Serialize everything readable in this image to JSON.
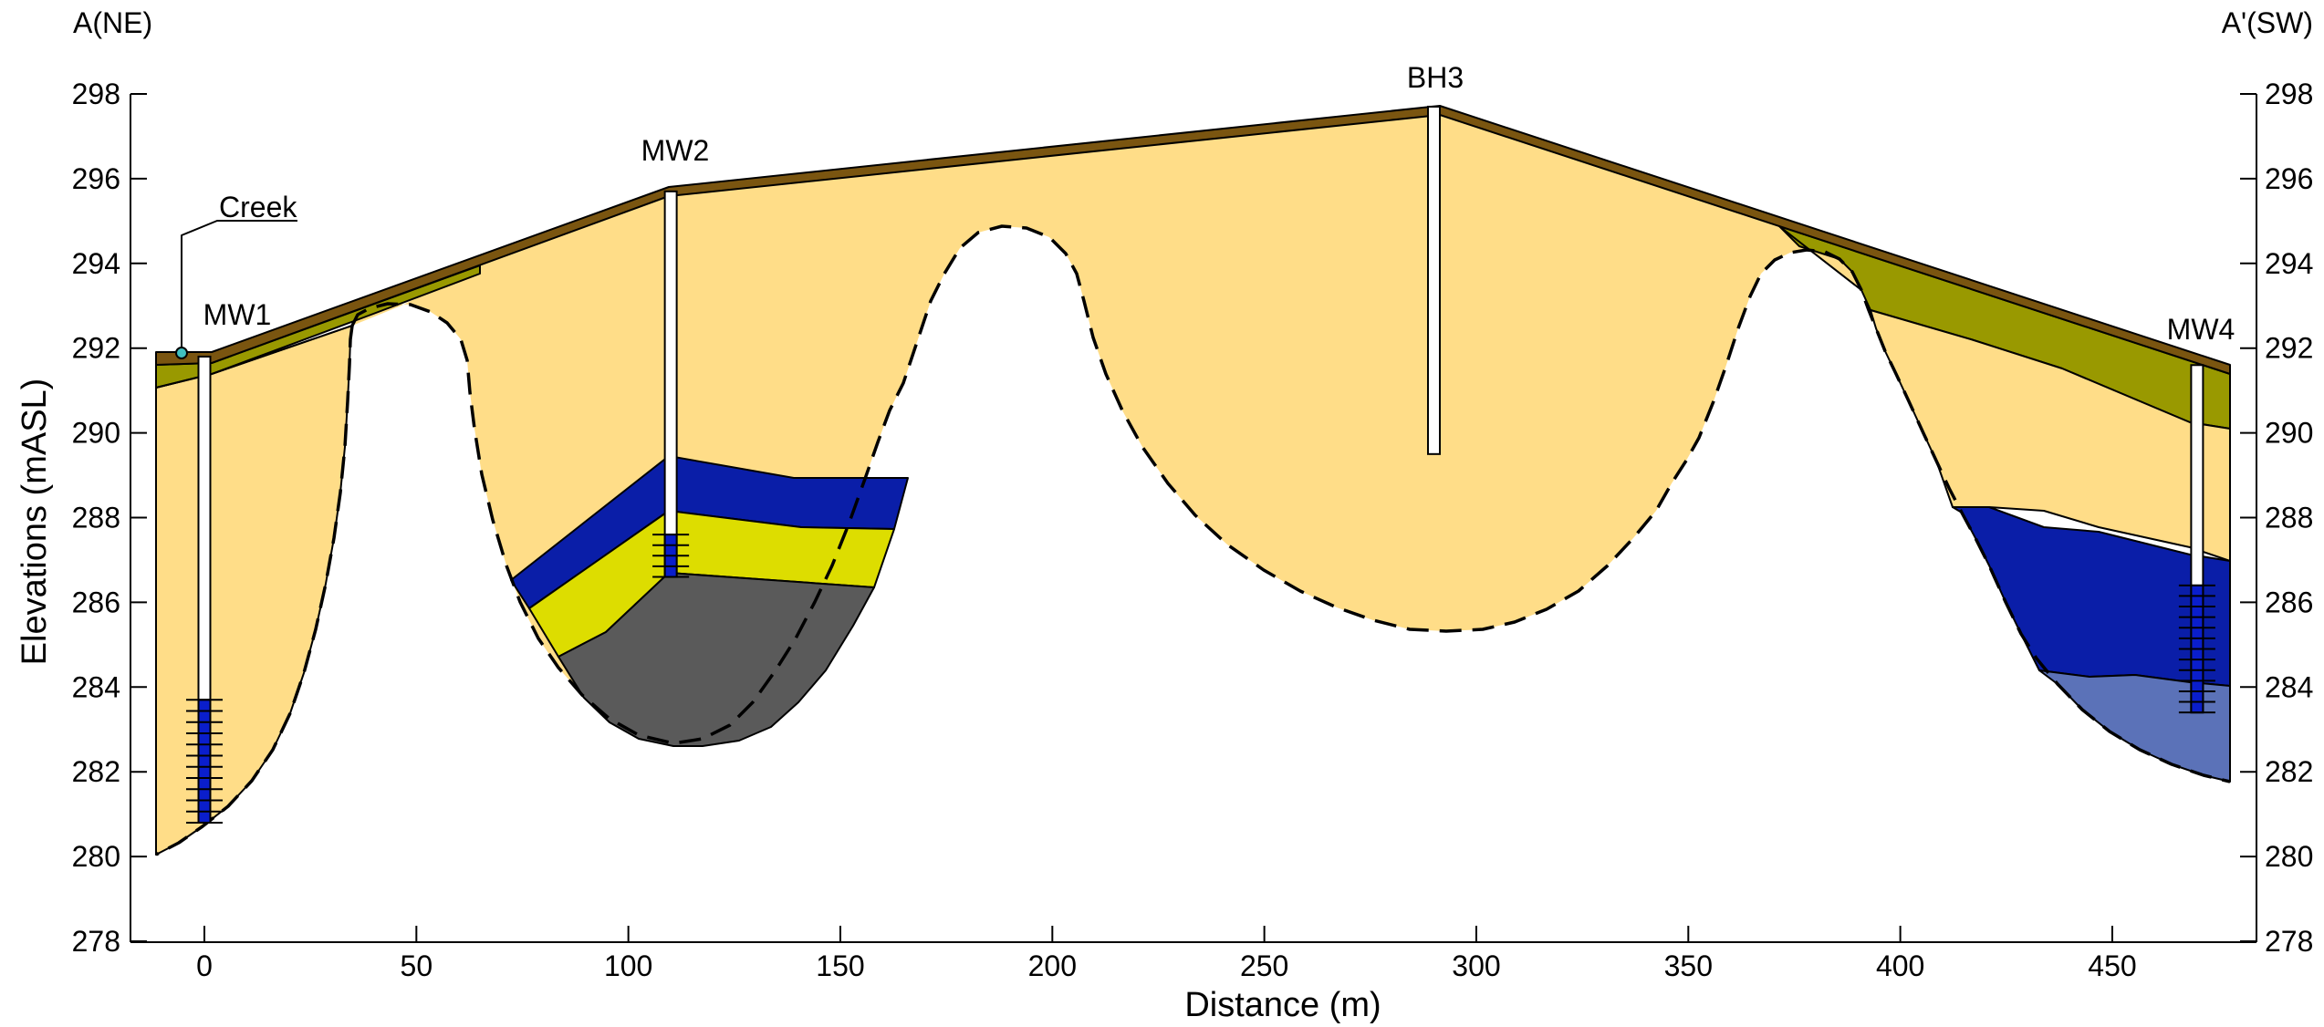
{
  "section": {
    "left_end_label": "A(NE)",
    "right_end_label": "A'(SW)",
    "creek_label": "Creek"
  },
  "axes": {
    "xlabel": "Distance (m)",
    "ylabel": "Elevations (mASL)",
    "x_ticks": [
      "0",
      "50",
      "100",
      "150",
      "200",
      "250",
      "300",
      "350",
      "400",
      "450"
    ],
    "y_ticks": [
      "278",
      "280",
      "282",
      "284",
      "286",
      "288",
      "290",
      "292",
      "294",
      "296",
      "298"
    ]
  },
  "colors": {
    "topsoil": "#7a5510",
    "olive": "#999900",
    "sand": "#ffdd88",
    "blue": "#0a1ea8",
    "yellow": "#dddd00",
    "grey": "#5a5a5a",
    "light_blue": "#5b72b8",
    "screen": "#0a1ecc"
  },
  "chart_data": {
    "type": "cross-section",
    "xlim": [
      -12,
      478
    ],
    "ylim": [
      278,
      298.4
    ],
    "wells": [
      {
        "name": "MW1",
        "x": 0,
        "top": 291.8,
        "bottom": 280.8,
        "screen_top": 283.7,
        "screen_bottom": 280.8
      },
      {
        "name": "MW2",
        "x": 110,
        "top": 295.7,
        "bottom": 286.6,
        "screen_top": 287.6,
        "screen_bottom": 286.6
      },
      {
        "name": "BH3",
        "x": 290,
        "top": 297.7,
        "bottom": 289.5
      },
      {
        "name": "MW4",
        "x": 470,
        "top": 291.6,
        "bottom": 283.4,
        "screen_top": 286.4,
        "screen_bottom": 283.4
      }
    ],
    "ground_surface": [
      [
        -12,
        291.9
      ],
      [
        0,
        291.9
      ],
      [
        110,
        295.8
      ],
      [
        290,
        297.7
      ],
      [
        478,
        291.6
      ]
    ]
  }
}
